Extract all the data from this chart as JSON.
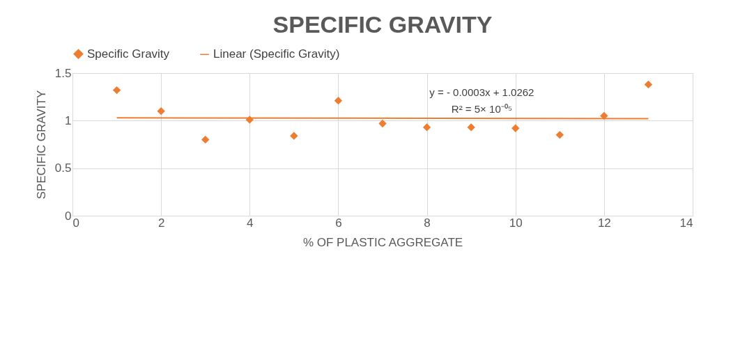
{
  "chart_data": {
    "type": "scatter",
    "title": "SPECIFIC GRAVITY",
    "xlabel": "% OF PLASTIC AGGREGATE",
    "ylabel": "SPECIFIC GRAVITY",
    "x": [
      1,
      2,
      3,
      4,
      5,
      6,
      7,
      8,
      9,
      10,
      11,
      12,
      13
    ],
    "series": [
      {
        "name": "Specific Gravity",
        "color": "#ed7d31",
        "values": [
          1.32,
          1.1,
          0.8,
          1.01,
          0.84,
          1.21,
          0.97,
          0.93,
          0.93,
          0.92,
          0.85,
          1.05,
          1.38
        ],
        "marker": "diamond"
      },
      {
        "name": "Linear (Specific Gravity)",
        "type": "line",
        "color": "#ed7d31",
        "x": [
          1,
          13
        ],
        "values": [
          1.03,
          1.02
        ],
        "line_style": "solid"
      }
    ],
    "xlim": [
      0,
      14
    ],
    "xticks": [
      0,
      2,
      4,
      6,
      8,
      10,
      12,
      14
    ],
    "ylim": [
      0,
      1.5
    ],
    "yticks": [
      0,
      0.5,
      1,
      1.5
    ],
    "grid": true,
    "legend": "top",
    "annotations": [
      "y = - 0.0003x + 1.0262",
      "R² = 5× 10⁻⁰⁵"
    ]
  }
}
